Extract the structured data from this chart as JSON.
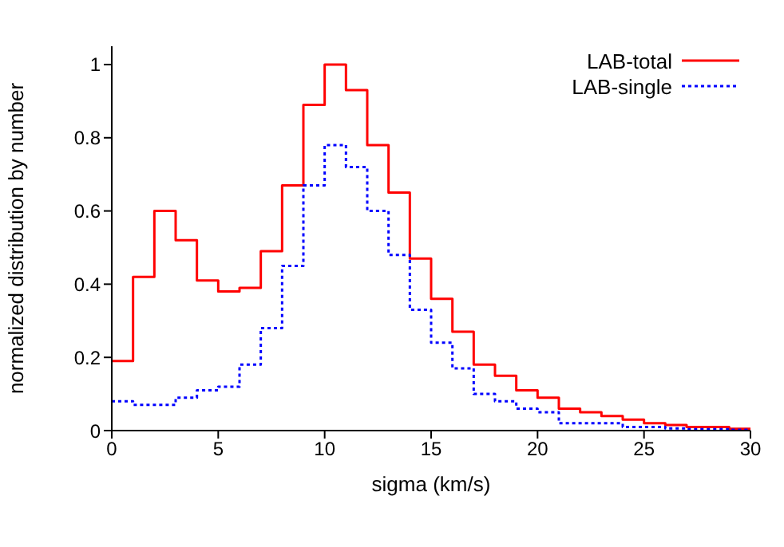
{
  "chart_data": {
    "type": "histogram",
    "xlabel": "sigma (km/s)",
    "ylabel": "normalized distribution by number",
    "bins": [
      0,
      1,
      2,
      3,
      4,
      5,
      6,
      7,
      8,
      9,
      10,
      11,
      12,
      13,
      14,
      15,
      16,
      17,
      18,
      19,
      20,
      21,
      22,
      23,
      24,
      25,
      26,
      27,
      28,
      29,
      30
    ],
    "series": [
      {
        "name": "LAB-total",
        "color": "#ff0000",
        "line_style": "solid",
        "values": [
          0.19,
          0.42,
          0.6,
          0.52,
          0.41,
          0.38,
          0.39,
          0.49,
          0.67,
          0.89,
          1.0,
          0.93,
          0.78,
          0.65,
          0.47,
          0.36,
          0.27,
          0.18,
          0.15,
          0.11,
          0.09,
          0.06,
          0.05,
          0.04,
          0.03,
          0.02,
          0.015,
          0.01,
          0.01,
          0.005
        ]
      },
      {
        "name": "LAB-single",
        "color": "#0000ff",
        "line_style": "dotted",
        "values": [
          0.08,
          0.07,
          0.07,
          0.09,
          0.11,
          0.12,
          0.18,
          0.28,
          0.45,
          0.67,
          0.78,
          0.72,
          0.6,
          0.48,
          0.33,
          0.24,
          0.17,
          0.1,
          0.08,
          0.06,
          0.05,
          0.02,
          0.02,
          0.02,
          0.01,
          0.01,
          0.006,
          0.004,
          0.004,
          0.002
        ]
      }
    ],
    "xlim": [
      0,
      30
    ],
    "xticks": [
      0,
      5,
      10,
      15,
      20,
      25,
      30
    ],
    "ylim": [
      0,
      1.05
    ],
    "yticks": [
      0,
      0.2,
      0.4,
      0.6,
      0.8,
      1
    ],
    "legend": "top right",
    "grid": false
  }
}
